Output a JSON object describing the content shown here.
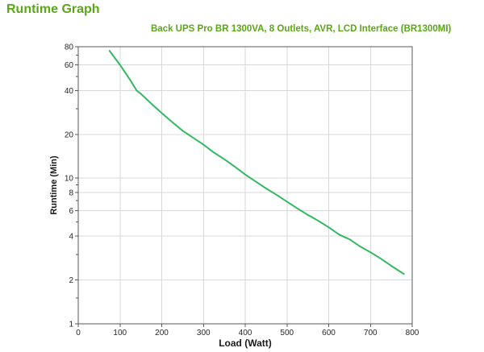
{
  "page": {
    "title": "Runtime Graph"
  },
  "colors": {
    "heading_green": "#5aa717",
    "curve_green": "#33b863",
    "grid": "#d9d9d9",
    "axis": "#595959",
    "label_text": "#262626"
  },
  "chart_data": {
    "type": "line",
    "title": "Back UPS Pro BR 1300VA, 8 Outlets, AVR, LCD Interface (BR1300MI)",
    "xlabel": "Load (Watt)",
    "ylabel": "Runtime (Min)",
    "x_scale": "linear",
    "y_scale": "log",
    "xlim": [
      0,
      800
    ],
    "ylim": [
      1,
      80
    ],
    "x_ticks": [
      0,
      100,
      200,
      300,
      400,
      500,
      600,
      700,
      800
    ],
    "y_ticks_labeled": [
      80,
      60,
      40,
      20,
      10,
      8,
      6,
      4,
      2,
      1
    ],
    "y_ticks_minor": [
      70,
      50,
      30,
      9,
      7,
      5,
      3,
      1.5
    ],
    "grid": true,
    "legend": "none",
    "series": [
      {
        "name": "Runtime",
        "color": "#33b863",
        "points": [
          [
            75,
            75
          ],
          [
            100,
            60
          ],
          [
            125,
            47
          ],
          [
            140,
            40
          ],
          [
            150,
            38
          ],
          [
            175,
            32.5
          ],
          [
            200,
            28
          ],
          [
            225,
            24.3
          ],
          [
            250,
            21.2
          ],
          [
            275,
            19
          ],
          [
            300,
            17
          ],
          [
            325,
            15
          ],
          [
            350,
            13.5
          ],
          [
            375,
            12
          ],
          [
            400,
            10.6
          ],
          [
            425,
            9.5
          ],
          [
            450,
            8.5
          ],
          [
            475,
            7.7
          ],
          [
            500,
            6.9
          ],
          [
            525,
            6.2
          ],
          [
            550,
            5.6
          ],
          [
            575,
            5.1
          ],
          [
            600,
            4.6
          ],
          [
            625,
            4.1
          ],
          [
            650,
            3.8
          ],
          [
            675,
            3.4
          ],
          [
            700,
            3.1
          ],
          [
            725,
            2.8
          ],
          [
            750,
            2.5
          ],
          [
            780,
            2.2
          ]
        ]
      }
    ]
  }
}
